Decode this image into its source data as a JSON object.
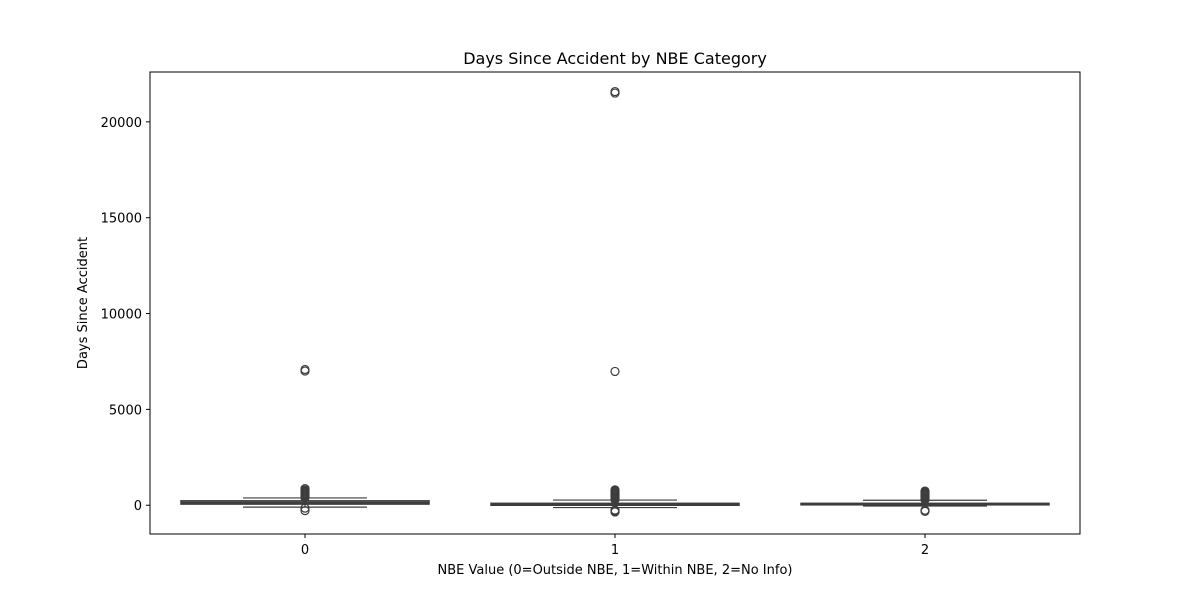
{
  "chart_data": {
    "type": "box",
    "title": "Days Since Accident by NBE Category",
    "xlabel": "NBE Value (0=Outside NBE, 1=Within NBE, 2=No Info)",
    "ylabel": "Days Since Accident",
    "categories": [
      "0",
      "1",
      "2"
    ],
    "ylim": [
      -1500,
      22600
    ],
    "yticks": [
      0,
      5000,
      10000,
      15000,
      20000
    ],
    "ytick_labels": [
      "0",
      "5000",
      "10000",
      "15000",
      "20000"
    ],
    "grid": false,
    "legend": "none",
    "box_color": "#3274a1",
    "boxes": [
      {
        "category": "0",
        "whisker_low": -100,
        "q1": 60,
        "median": 130,
        "q3": 230,
        "whisker_high": 380,
        "outliers": [
          -280,
          -150,
          400,
          450,
          500,
          550,
          600,
          650,
          700,
          750,
          800,
          870,
          7000,
          7080
        ]
      },
      {
        "category": "1",
        "whisker_low": -120,
        "q1": 0,
        "median": 40,
        "q3": 100,
        "whisker_high": 270,
        "outliers": [
          -350,
          -300,
          -250,
          300,
          350,
          400,
          450,
          500,
          550,
          600,
          650,
          700,
          750,
          800,
          6980,
          21500,
          21580
        ]
      },
      {
        "category": "2",
        "whisker_low": -40,
        "q1": 40,
        "median": 70,
        "q3": 100,
        "whisker_high": 260,
        "outliers": [
          -320,
          -260,
          300,
          350,
          400,
          450,
          500,
          550,
          600,
          650,
          700,
          740
        ]
      }
    ]
  }
}
